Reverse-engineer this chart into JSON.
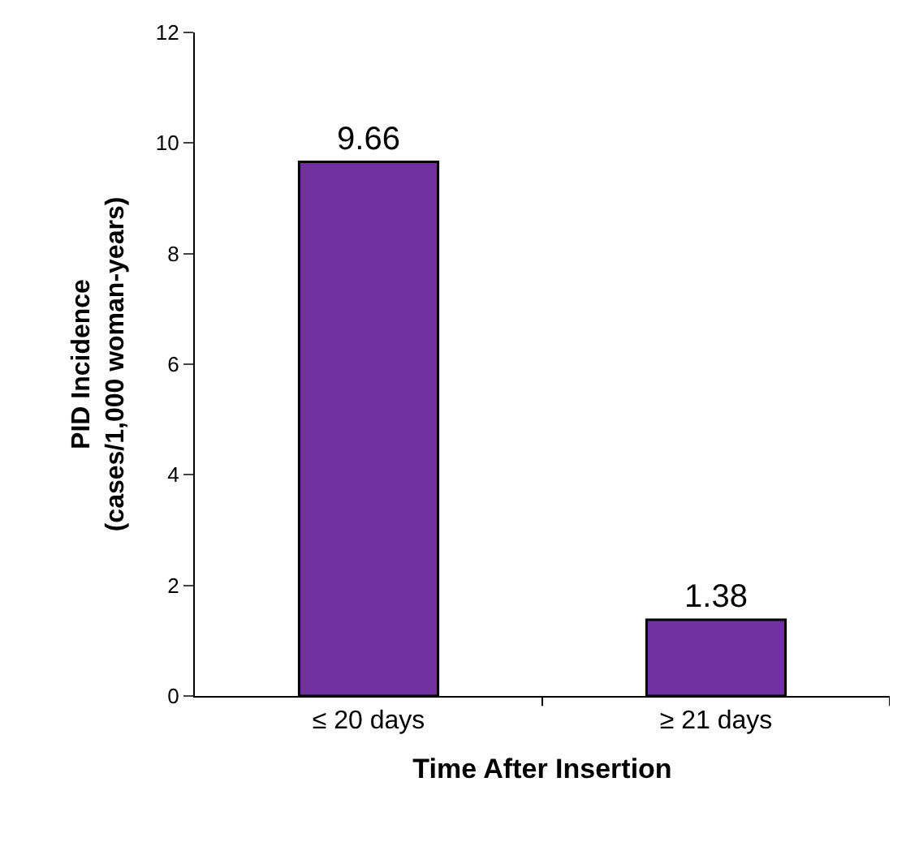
{
  "chart_data": {
    "type": "bar",
    "xlabel": "Time After Insertion",
    "ylabel": "PID Incidence\n(cases/1,000 woman-years)",
    "categories": [
      "≤ 20 days",
      "≥ 21 days"
    ],
    "values": [
      9.66,
      1.38
    ],
    "color": "#7030a0",
    "data_labels": true,
    "ylim": [
      0,
      12
    ],
    "yticks": [
      0,
      2,
      4,
      6,
      8,
      10,
      12
    ]
  }
}
